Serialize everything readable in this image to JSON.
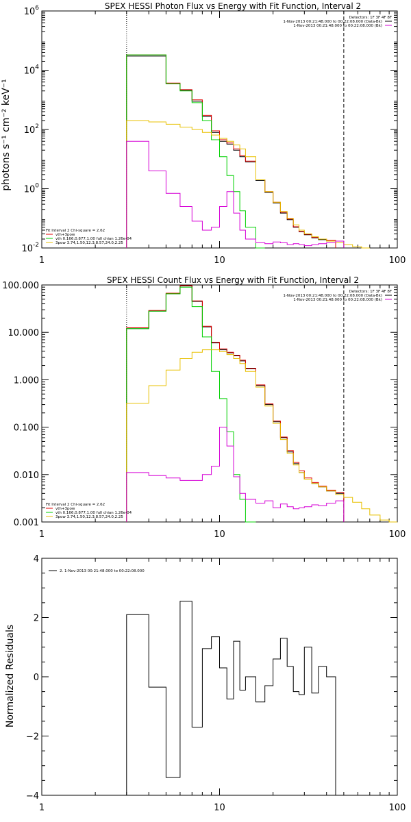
{
  "chart_data": [
    {
      "type": "line",
      "panel": "photon",
      "title": "SPEX HESSI Photon Flux vs Energy with Fit Function, Interval 2",
      "xlabel": "",
      "ylabel": "photons s⁻¹ cm⁻² keV⁻¹",
      "xscale": "log",
      "yscale": "log",
      "xlim": [
        1,
        100
      ],
      "ylim": [
        0.01,
        1000000
      ],
      "xticks": [
        {
          "v": 1,
          "label": "1"
        },
        {
          "v": 10,
          "label": "10"
        },
        {
          "v": 100,
          "label": "100"
        }
      ],
      "yticks": [
        {
          "v": 0.01,
          "base": "10",
          "exp": "-2"
        },
        {
          "v": 1,
          "base": "10",
          "exp": "0"
        },
        {
          "v": 100,
          "base": "10",
          "exp": "2"
        },
        {
          "v": 10000,
          "base": "10",
          "exp": "4"
        },
        {
          "v": 1000000,
          "base": "10",
          "exp": "6"
        }
      ],
      "vlines": [
        {
          "x": 3,
          "style": "dotted"
        },
        {
          "x": 50,
          "style": "dashed"
        }
      ],
      "legend_top": {
        "position": "top-right",
        "header": "Detectors: 1F 3F 4F 8F",
        "entries": [
          {
            "label": "1-Nov-2013 00:21:48.000 to 00:22:08.000 (Data-Bk)",
            "color": "#000000"
          },
          {
            "label": "1-Nov-2013 00:21:48.000 to 00:22:08.000 (Bk)",
            "color": "#d600d6"
          }
        ]
      },
      "legend_bottom": {
        "position": "bottom-left",
        "header": "Fit Interval 2   Chi-square = 2.62",
        "entries": [
          {
            "label": "vth+3pow",
            "color": "#e00000"
          },
          {
            "label": "vth 0.166,0.877,1.00  full chian 1.26e-04",
            "color": "#00d000"
          },
          {
            "label": "3pow 3.74,1.50,12.3,8.57,24.0,2.25",
            "color": "#e8c000"
          }
        ]
      },
      "edges": [
        3,
        4,
        5,
        6,
        7,
        8,
        9,
        10,
        11,
        12,
        13,
        14,
        16,
        18,
        20,
        22,
        24,
        26,
        28,
        30,
        33,
        36,
        40,
        45,
        50,
        56,
        63,
        70,
        80,
        90,
        100
      ],
      "series": [
        {
          "role": "data",
          "color": "#000000",
          "start": 0,
          "values": [
            30000,
            30000,
            3500,
            2100,
            900,
            270,
            80,
            40,
            32,
            20,
            12,
            8,
            1.9,
            0.75,
            0.33,
            0.15,
            0.09,
            0.05,
            0.035,
            0.028,
            0.022,
            0.019,
            0.017
          ]
        },
        {
          "role": "vth+3pow",
          "color": "#e00000",
          "start": 0,
          "values": [
            33000,
            33000,
            3700,
            2200,
            1000,
            300,
            90,
            45,
            35,
            22,
            13,
            8.5,
            2.0,
            0.8,
            0.35,
            0.16,
            0.095,
            0.052,
            0.036,
            0.029,
            0.023,
            0.02,
            0.018
          ]
        },
        {
          "role": "vth",
          "color": "#00d000",
          "start": 0,
          "values": [
            33000,
            33000,
            3500,
            2000,
            800,
            200,
            45,
            12,
            2.8,
            0.8,
            0.18,
            0.05,
            0.01
          ]
        },
        {
          "role": "3pow",
          "color": "#e8c000",
          "start": 0,
          "values": [
            200,
            180,
            150,
            120,
            100,
            80,
            65,
            50,
            40,
            30,
            22,
            12,
            2.0,
            0.8,
            0.35,
            0.17,
            0.1,
            0.06,
            0.04,
            0.03,
            0.024,
            0.02,
            0.017,
            0.015,
            0.013,
            0.011,
            0.01
          ]
        },
        {
          "role": "background",
          "color": "#d600d6",
          "start": 0,
          "values": [
            40,
            4,
            0.7,
            0.25,
            0.08,
            0.04,
            0.05,
            0.25,
            0.8,
            0.15,
            0.04,
            0.02,
            0.015,
            0.014,
            0.016,
            0.015,
            0.013,
            0.014,
            0.013,
            0.012,
            0.013,
            0.014,
            0.015,
            0.017
          ]
        }
      ]
    },
    {
      "type": "line",
      "panel": "count",
      "title": "SPEX HESSI Count Flux vs Energy with Fit Function, Interval 2",
      "xlabel": "",
      "ylabel": "",
      "xscale": "log",
      "yscale": "log",
      "xlim": [
        1,
        100
      ],
      "ylim": [
        0.001,
        100
      ],
      "xticks": [
        {
          "v": 1,
          "label": "1"
        },
        {
          "v": 10,
          "label": "10"
        },
        {
          "v": 100,
          "label": "100"
        }
      ],
      "yticks": [
        {
          "v": 0.001,
          "label": "0.001"
        },
        {
          "v": 0.01,
          "label": "0.010"
        },
        {
          "v": 0.1,
          "label": "0.100"
        },
        {
          "v": 1,
          "label": "1.000"
        },
        {
          "v": 10,
          "label": "10.000"
        },
        {
          "v": 100,
          "label": "100.000"
        }
      ],
      "vlines": [
        {
          "x": 3,
          "style": "dotted"
        },
        {
          "x": 50,
          "style": "dashed"
        }
      ],
      "legend_top": {
        "position": "top-right",
        "header": "Detectors: 1F 3F 4F 8F",
        "entries": [
          {
            "label": "1-Nov-2013 00:21:48.000 to 00:22:08.000 (Data-Bk)",
            "color": "#000000"
          },
          {
            "label": "1-Nov-2013 00:21:48.000 to 00:22:08.000 (Bk)",
            "color": "#d600d6"
          }
        ]
      },
      "legend_bottom": {
        "position": "bottom-left",
        "header": "Fit Interval 2   Chi-square = 2.62",
        "entries": [
          {
            "label": "vth+3pow",
            "color": "#e00000"
          },
          {
            "label": "vth 0.166,0.877,1.00  full chian 1.26e-04",
            "color": "#00d000"
          },
          {
            "label": "3pow 3.74,1.50,12.3,8.57,24.0,2.25",
            "color": "#e8c000"
          }
        ]
      },
      "edges": [
        3,
        4,
        5,
        6,
        7,
        8,
        9,
        10,
        11,
        12,
        13,
        14,
        16,
        18,
        20,
        22,
        24,
        26,
        28,
        30,
        33,
        36,
        40,
        45,
        50,
        56,
        63,
        70,
        80,
        90,
        100
      ],
      "series": [
        {
          "role": "data",
          "color": "#000000",
          "start": 0,
          "values": [
            12,
            28,
            65,
            95,
            45,
            13,
            6,
            4.3,
            3.7,
            3.2,
            2.5,
            1.7,
            0.75,
            0.3,
            0.13,
            0.06,
            0.03,
            0.017,
            0.011,
            0.008,
            0.0065,
            0.0055,
            0.0045,
            0.004
          ]
        },
        {
          "role": "vth+3pow",
          "color": "#e00000",
          "start": 0,
          "values": [
            12.5,
            29,
            67,
            97,
            46,
            13.5,
            6.2,
            4.5,
            3.8,
            3.3,
            2.6,
            1.75,
            0.78,
            0.31,
            0.135,
            0.062,
            0.032,
            0.018,
            0.012,
            0.0085,
            0.0068,
            0.0057,
            0.0047,
            0.0042
          ]
        },
        {
          "role": "vth",
          "color": "#00d000",
          "start": 0,
          "values": [
            12,
            28,
            65,
            90,
            35,
            8,
            1.5,
            0.4,
            0.08,
            0.01,
            0.003,
            0.001
          ]
        },
        {
          "role": "3pow",
          "color": "#e8c000",
          "start": 0,
          "values": [
            0.32,
            0.75,
            1.6,
            2.8,
            3.8,
            4.3,
            4.3,
            3.9,
            3.4,
            2.8,
            2.2,
            1.5,
            0.7,
            0.28,
            0.12,
            0.055,
            0.028,
            0.016,
            0.011,
            0.008,
            0.0065,
            0.0055,
            0.0045,
            0.0038,
            0.0033,
            0.0026,
            0.0019,
            0.0014,
            0.0011,
            0.001
          ]
        },
        {
          "role": "background",
          "color": "#d600d6",
          "start": 0,
          "values": [
            0.011,
            0.0095,
            0.0085,
            0.0075,
            0.0075,
            0.01,
            0.015,
            0.1,
            0.04,
            0.009,
            0.004,
            0.003,
            0.0025,
            0.0028,
            0.002,
            0.0024,
            0.0021,
            0.0019,
            0.002,
            0.0021,
            0.0023,
            0.0022,
            0.0025,
            0.0028
          ]
        }
      ]
    },
    {
      "type": "line",
      "panel": "residuals",
      "title": "",
      "xlabel": "",
      "ylabel": "Normalized Residuals",
      "xscale": "log",
      "yscale": "linear",
      "xlim": [
        1,
        100
      ],
      "ylim": [
        -4,
        4
      ],
      "xticks": [
        {
          "v": 1,
          "label": "1"
        },
        {
          "v": 10,
          "label": "10"
        },
        {
          "v": 100,
          "label": "100"
        }
      ],
      "yticks": [
        {
          "v": -4,
          "label": "−4"
        },
        {
          "v": -2,
          "label": "−2"
        },
        {
          "v": 0,
          "label": "0"
        },
        {
          "v": 2,
          "label": "2"
        },
        {
          "v": 4,
          "label": "4"
        }
      ],
      "legend_top": {
        "position": "top-left",
        "header": "",
        "entries": [
          {
            "label": "2.  1-Nov-2013 00:21:48.000 to 00:22:08.000",
            "color": "#000000"
          }
        ]
      },
      "edges": [
        3,
        4,
        5,
        6,
        7,
        8,
        9,
        10,
        11,
        12,
        13,
        14,
        16,
        18,
        20,
        22,
        24,
        26,
        28,
        30,
        33,
        36,
        40,
        45,
        50
      ],
      "series": [
        {
          "role": "residuals",
          "color": "#000000",
          "start": 0,
          "closed": true,
          "values": [
            2.1,
            -0.35,
            -3.4,
            2.55,
            -1.7,
            0.95,
            1.35,
            0.3,
            -0.75,
            1.2,
            -0.45,
            0.0,
            -0.85,
            -0.3,
            0.6,
            1.3,
            0.35,
            -0.5,
            -0.6,
            1.0,
            -0.55,
            0.35,
            0.0
          ]
        }
      ]
    }
  ]
}
